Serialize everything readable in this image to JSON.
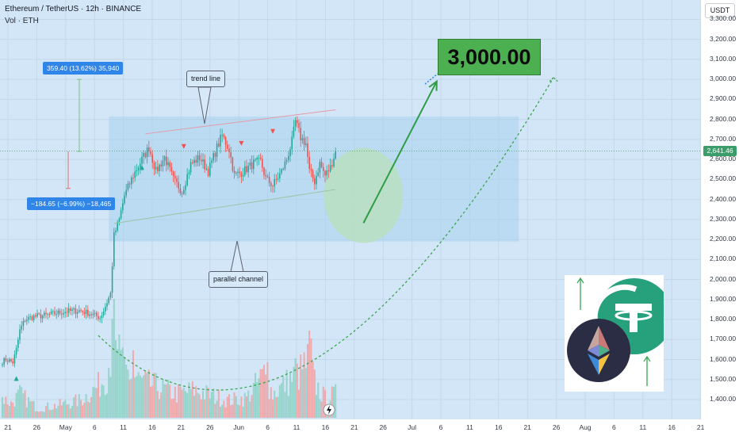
{
  "header": {
    "symbol": "Ethereum / TetherUS · 12h · BINANCE",
    "volume_label": "Vol · ETH",
    "currency": "USDT"
  },
  "price_tags": {
    "last_price": "2,641.46",
    "top_partial": "3,300.00"
  },
  "annotations": {
    "up_measure": "359.40 (13.62%) 35,940",
    "down_measure": "−184.65 (−6.99%) −18,465",
    "trend_line_label": "trend line",
    "channel_label": "parallel channel",
    "target_label": "3,000.00"
  },
  "colors": {
    "up": "#26a69a",
    "down": "#ef5350",
    "accent_blue": "#2f86e8",
    "target_green": "#4caf50",
    "last_price_tag": "#3a9d6a",
    "tether_teal": "#26a17b"
  },
  "icons": {
    "lightning": "lightning-icon",
    "ethereum_logo": "ethereum-logo",
    "tether_logo": "tether-logo"
  },
  "chart_data": {
    "type": "candlestick",
    "x_ticks": [
      "21",
      "26",
      "May",
      "6",
      "11",
      "16",
      "21",
      "26",
      "Jun",
      "6",
      "11",
      "16",
      "21",
      "26",
      "Jul",
      "6",
      "11",
      "16",
      "21",
      "26",
      "Aug",
      "6",
      "11",
      "16",
      "21"
    ],
    "y_ticks": [
      "3,300.00",
      "3,200.00",
      "3,100.00",
      "3,000.00",
      "2,900.00",
      "2,800.00",
      "2,700.00",
      "2,600.00",
      "2,500.00",
      "2,400.00",
      "2,300.00",
      "2,200.00",
      "2,100.00",
      "2,000.00",
      "1,900.00",
      "1,800.00",
      "1,700.00",
      "1,600.00",
      "1,500.00",
      "1,400.00"
    ],
    "ylim": [
      1390,
      3335
    ],
    "last_price": 2641.46,
    "target_price": 3000,
    "close_anchors": [
      [
        0,
        1590
      ],
      [
        2,
        1600
      ],
      [
        4,
        1595
      ],
      [
        6,
        1585
      ],
      [
        8,
        1650
      ],
      [
        10,
        1745
      ],
      [
        13,
        1800
      ],
      [
        18,
        1815
      ],
      [
        24,
        1820
      ],
      [
        30,
        1830
      ],
      [
        36,
        1840
      ],
      [
        44,
        1845
      ],
      [
        50,
        1830
      ],
      [
        56,
        1810
      ],
      [
        58,
        1845
      ],
      [
        62,
        1930
      ],
      [
        64,
        2220
      ],
      [
        67,
        2300
      ],
      [
        70,
        2420
      ],
      [
        75,
        2520
      ],
      [
        80,
        2600
      ],
      [
        84,
        2660
      ],
      [
        88,
        2540
      ],
      [
        93,
        2610
      ],
      [
        98,
        2500
      ],
      [
        103,
        2440
      ],
      [
        108,
        2575
      ],
      [
        113,
        2610
      ],
      [
        118,
        2540
      ],
      [
        123,
        2660
      ],
      [
        126,
        2720
      ],
      [
        130,
        2650
      ],
      [
        133,
        2520
      ],
      [
        138,
        2540
      ],
      [
        144,
        2580
      ],
      [
        148,
        2590
      ],
      [
        151,
        2505
      ],
      [
        155,
        2470
      ],
      [
        160,
        2540
      ],
      [
        163,
        2600
      ],
      [
        166,
        2690
      ],
      [
        168,
        2790
      ],
      [
        171,
        2710
      ],
      [
        174,
        2680
      ],
      [
        176,
        2540
      ],
      [
        179,
        2490
      ],
      [
        182,
        2580
      ],
      [
        185,
        2520
      ],
      [
        188,
        2560
      ],
      [
        191,
        2641
      ]
    ],
    "volume_anchors": [
      [
        0,
        25
      ],
      [
        5,
        18
      ],
      [
        10,
        30
      ],
      [
        20,
        12
      ],
      [
        30,
        15
      ],
      [
        45,
        22
      ],
      [
        55,
        40
      ],
      [
        60,
        55
      ],
      [
        63,
        95
      ],
      [
        66,
        70
      ],
      [
        70,
        60
      ],
      [
        80,
        45
      ],
      [
        90,
        38
      ],
      [
        100,
        30
      ],
      [
        110,
        35
      ],
      [
        120,
        28
      ],
      [
        130,
        22
      ],
      [
        140,
        25
      ],
      [
        150,
        55
      ],
      [
        155,
        30
      ],
      [
        165,
        48
      ],
      [
        170,
        55
      ],
      [
        175,
        70
      ],
      [
        180,
        40
      ],
      [
        185,
        25
      ],
      [
        191,
        30
      ]
    ],
    "volume_spikes": [
      [
        63,
        125
      ],
      [
        64,
        150
      ],
      [
        67,
        105
      ],
      [
        75,
        85
      ],
      [
        152,
        70
      ],
      [
        168,
        75
      ],
      [
        176,
        110
      ],
      [
        177,
        100
      ]
    ],
    "up_measure": {
      "from": 2640,
      "to": 3000
    },
    "down_measure": {
      "from": 2640,
      "to": 2455
    },
    "trend_line": {
      "start": [
        82,
        2728
      ],
      "end": [
        191,
        2848
      ]
    },
    "lower_channel_line": {
      "start": [
        64,
        2280
      ],
      "end": [
        191,
        2450
      ]
    },
    "channel_box": {
      "x": [
        61,
        296
      ],
      "y": [
        2190,
        2815
      ]
    },
    "consolidation_circle": {
      "x": 207,
      "y": 2420
    },
    "up_arrow": {
      "from": [
        207,
        2282
      ],
      "to": [
        249,
        2990
      ]
    },
    "curved_projection": {
      "from": [
        55,
        1720
      ],
      "through": [
        175,
        1580
      ],
      "to": [
        316,
        3010
      ]
    },
    "triangle_markers": [
      {
        "i": 8,
        "price": 1505,
        "kind": "up"
      },
      {
        "i": 80,
        "price": 2560,
        "kind": "up"
      },
      {
        "i": 104,
        "price": 2665,
        "kind": "down"
      },
      {
        "i": 137,
        "price": 2680,
        "kind": "down"
      },
      {
        "i": 155,
        "price": 2740,
        "kind": "down"
      }
    ]
  }
}
